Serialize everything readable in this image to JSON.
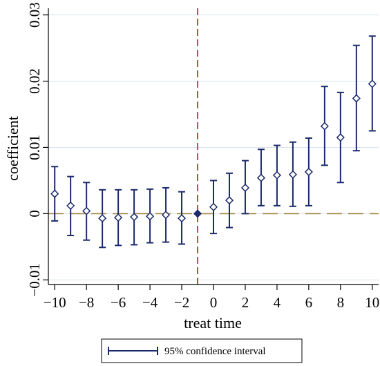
{
  "chart_data": {
    "type": "scatter",
    "xlabel": "treat time",
    "ylabel": "coefficient",
    "xlim": [
      -10.4,
      10.4
    ],
    "ylim": [
      -0.0107,
      0.031
    ],
    "xticks": [
      -10,
      -8,
      -6,
      -4,
      -2,
      0,
      2,
      4,
      6,
      8,
      10
    ],
    "xtick_labels": [
      "−10",
      "−8",
      "−6",
      "−4",
      "−2",
      "0",
      "2",
      "4",
      "6",
      "8",
      "10"
    ],
    "yticks": [
      -0.01,
      0,
      0.01,
      0.02,
      0.03
    ],
    "ytick_labels": [
      "−0.01",
      "0",
      "0.01",
      "0.02",
      "0.03"
    ],
    "grid": true,
    "reference_line_y": 0,
    "reference_line_x": -1,
    "legend": {
      "position": "bottom",
      "label": "95% confidence interval"
    },
    "colors": {
      "ci": "#1a2a6c",
      "marker": "#1a2a6c",
      "reference_h": "#a08a4a",
      "reference_v": "#c0392b",
      "grid": "#d7e3ea"
    },
    "points": [
      {
        "x": -10,
        "y": 0.003,
        "lo": -0.0011,
        "hi": 0.0071
      },
      {
        "x": -9,
        "y": 0.0012,
        "lo": -0.0033,
        "hi": 0.0056
      },
      {
        "x": -8,
        "y": 0.0004,
        "lo": -0.004,
        "hi": 0.0047
      },
      {
        "x": -7,
        "y": -0.0007,
        "lo": -0.0051,
        "hi": 0.0036
      },
      {
        "x": -6,
        "y": -0.0006,
        "lo": -0.0048,
        "hi": 0.0036
      },
      {
        "x": -5,
        "y": -0.0005,
        "lo": -0.0047,
        "hi": 0.0036
      },
      {
        "x": -4,
        "y": -0.0004,
        "lo": -0.0044,
        "hi": 0.0037
      },
      {
        "x": -3,
        "y": -0.0002,
        "lo": -0.0043,
        "hi": 0.0039
      },
      {
        "x": -2,
        "y": -0.0007,
        "lo": -0.0046,
        "hi": 0.0033
      },
      {
        "x": -1,
        "y": 0.0,
        "lo": 0.0,
        "hi": 0.0,
        "reference": true
      },
      {
        "x": 0,
        "y": 0.001,
        "lo": -0.003,
        "hi": 0.005
      },
      {
        "x": 1,
        "y": 0.002,
        "lo": -0.0021,
        "hi": 0.0061
      },
      {
        "x": 2,
        "y": 0.0039,
        "lo": 0.0,
        "hi": 0.008
      },
      {
        "x": 3,
        "y": 0.0054,
        "lo": 0.0012,
        "hi": 0.0097
      },
      {
        "x": 4,
        "y": 0.0058,
        "lo": 0.0012,
        "hi": 0.0103
      },
      {
        "x": 5,
        "y": 0.0059,
        "lo": 0.0011,
        "hi": 0.0108
      },
      {
        "x": 6,
        "y": 0.0063,
        "lo": 0.0012,
        "hi": 0.0114
      },
      {
        "x": 7,
        "y": 0.0132,
        "lo": 0.0073,
        "hi": 0.0192
      },
      {
        "x": 8,
        "y": 0.0115,
        "lo": 0.0047,
        "hi": 0.0183
      },
      {
        "x": 9,
        "y": 0.0174,
        "lo": 0.0095,
        "hi": 0.0254
      },
      {
        "x": 10,
        "y": 0.0196,
        "lo": 0.0125,
        "hi": 0.0268
      }
    ]
  }
}
